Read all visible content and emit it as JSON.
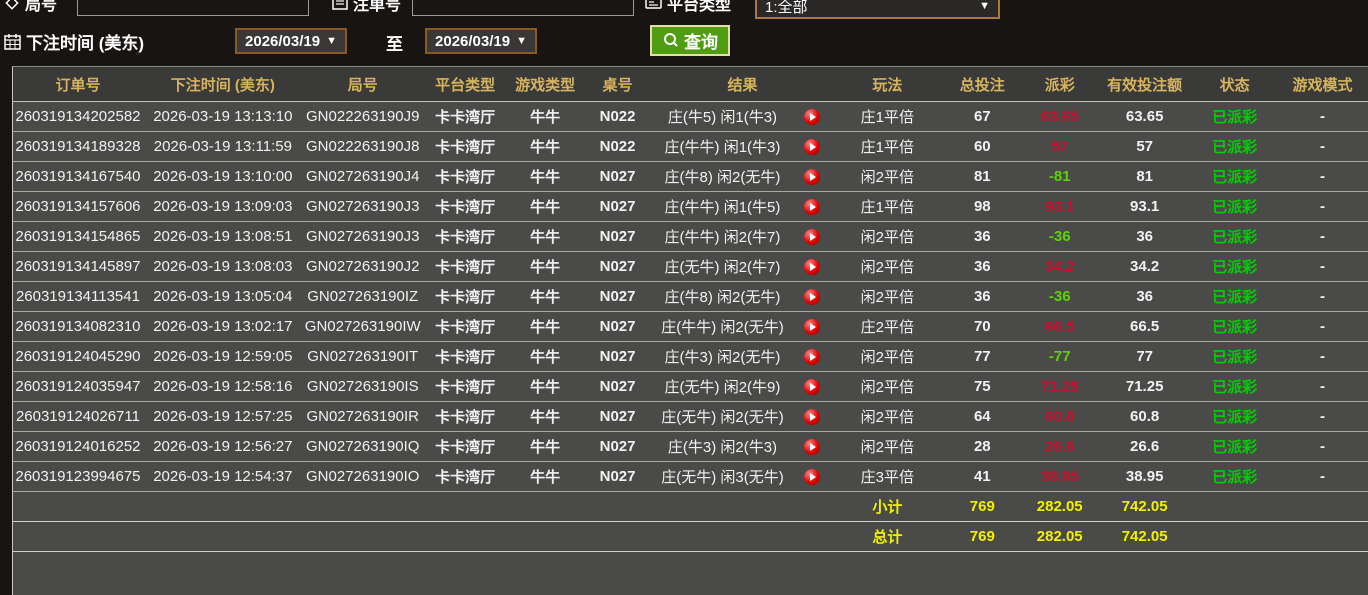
{
  "colors": {
    "header_text": "#d6b35f",
    "payout_win": "#cf0e2e",
    "payout_loss": "#5bd400",
    "status_paid": "#00cf00",
    "totals": "#f2f200",
    "query_button": "#4f9d12",
    "picker_border": "#8a5a26",
    "dropdown_border": "#a8793a",
    "play_icon": "#e00000"
  },
  "filters": {
    "round_label": "局号",
    "bet_id_label": "注单号",
    "round_value": "",
    "bet_id_value": "",
    "platform_label": "平台类型",
    "platform_value": "1:全部",
    "time_label": "下注时间 (美东)",
    "date_from": "2026/03/19",
    "to_label": "至",
    "date_to": "2026/03/19",
    "search_label": "查询",
    "caret": "▼"
  },
  "table": {
    "columns": [
      "订单号",
      "下注时间 (美东)",
      "局号",
      "平台类型",
      "游戏类型",
      "桌号",
      "结果",
      "玩法",
      "总投注",
      "派彩",
      "有效投注额",
      "状态",
      "游戏模式"
    ],
    "rows": [
      {
        "order": "260319134202582",
        "time": "2026-03-19 13:13:10",
        "round": "GN022263190J9",
        "platform": "卡卡湾厅",
        "game": "牛牛",
        "table": "N022",
        "result": "庄(牛5) 闲1(牛3)",
        "play": "庄1平倍",
        "total": "67",
        "payout": "63.65",
        "valid": "63.65",
        "status": "已派彩",
        "mode": "-"
      },
      {
        "order": "260319134189328",
        "time": "2026-03-19 13:11:59",
        "round": "GN022263190J8",
        "platform": "卡卡湾厅",
        "game": "牛牛",
        "table": "N022",
        "result": "庄(牛牛) 闲1(牛3)",
        "play": "庄1平倍",
        "total": "60",
        "payout": "57",
        "valid": "57",
        "status": "已派彩",
        "mode": "-"
      },
      {
        "order": "260319134167540",
        "time": "2026-03-19 13:10:00",
        "round": "GN027263190J4",
        "platform": "卡卡湾厅",
        "game": "牛牛",
        "table": "N027",
        "result": "庄(牛8) 闲2(无牛)",
        "play": "闲2平倍",
        "total": "81",
        "payout": "-81",
        "valid": "81",
        "status": "已派彩",
        "mode": "-"
      },
      {
        "order": "260319134157606",
        "time": "2026-03-19 13:09:03",
        "round": "GN027263190J3",
        "platform": "卡卡湾厅",
        "game": "牛牛",
        "table": "N027",
        "result": "庄(牛牛) 闲1(牛5)",
        "play": "庄1平倍",
        "total": "98",
        "payout": "93.1",
        "valid": "93.1",
        "status": "已派彩",
        "mode": "-"
      },
      {
        "order": "260319134154865",
        "time": "2026-03-19 13:08:51",
        "round": "GN027263190J3",
        "platform": "卡卡湾厅",
        "game": "牛牛",
        "table": "N027",
        "result": "庄(牛牛) 闲2(牛7)",
        "play": "闲2平倍",
        "total": "36",
        "payout": "-36",
        "valid": "36",
        "status": "已派彩",
        "mode": "-"
      },
      {
        "order": "260319134145897",
        "time": "2026-03-19 13:08:03",
        "round": "GN027263190J2",
        "platform": "卡卡湾厅",
        "game": "牛牛",
        "table": "N027",
        "result": "庄(无牛) 闲2(牛7)",
        "play": "闲2平倍",
        "total": "36",
        "payout": "34.2",
        "valid": "34.2",
        "status": "已派彩",
        "mode": "-"
      },
      {
        "order": "260319134113541",
        "time": "2026-03-19 13:05:04",
        "round": "GN027263190IZ",
        "platform": "卡卡湾厅",
        "game": "牛牛",
        "table": "N027",
        "result": "庄(牛8) 闲2(无牛)",
        "play": "闲2平倍",
        "total": "36",
        "payout": "-36",
        "valid": "36",
        "status": "已派彩",
        "mode": "-"
      },
      {
        "order": "260319134082310",
        "time": "2026-03-19 13:02:17",
        "round": "GN027263190IW",
        "platform": "卡卡湾厅",
        "game": "牛牛",
        "table": "N027",
        "result": "庄(牛牛) 闲2(无牛)",
        "play": "庄2平倍",
        "total": "70",
        "payout": "66.5",
        "valid": "66.5",
        "status": "已派彩",
        "mode": "-"
      },
      {
        "order": "260319124045290",
        "time": "2026-03-19 12:59:05",
        "round": "GN027263190IT",
        "platform": "卡卡湾厅",
        "game": "牛牛",
        "table": "N027",
        "result": "庄(牛3) 闲2(无牛)",
        "play": "闲2平倍",
        "total": "77",
        "payout": "-77",
        "valid": "77",
        "status": "已派彩",
        "mode": "-"
      },
      {
        "order": "260319124035947",
        "time": "2026-03-19 12:58:16",
        "round": "GN027263190IS",
        "platform": "卡卡湾厅",
        "game": "牛牛",
        "table": "N027",
        "result": "庄(无牛) 闲2(牛9)",
        "play": "闲2平倍",
        "total": "75",
        "payout": "71.25",
        "valid": "71.25",
        "status": "已派彩",
        "mode": "-"
      },
      {
        "order": "260319124026711",
        "time": "2026-03-19 12:57:25",
        "round": "GN027263190IR",
        "platform": "卡卡湾厅",
        "game": "牛牛",
        "table": "N027",
        "result": "庄(无牛) 闲2(无牛)",
        "play": "闲2平倍",
        "total": "64",
        "payout": "60.8",
        "valid": "60.8",
        "status": "已派彩",
        "mode": "-"
      },
      {
        "order": "260319124016252",
        "time": "2026-03-19 12:56:27",
        "round": "GN027263190IQ",
        "platform": "卡卡湾厅",
        "game": "牛牛",
        "table": "N027",
        "result": "庄(牛3) 闲2(牛3)",
        "play": "闲2平倍",
        "total": "28",
        "payout": "26.6",
        "valid": "26.6",
        "status": "已派彩",
        "mode": "-"
      },
      {
        "order": "260319123994675",
        "time": "2026-03-19 12:54:37",
        "round": "GN027263190IO",
        "platform": "卡卡湾厅",
        "game": "牛牛",
        "table": "N027",
        "result": "庄(无牛) 闲3(无牛)",
        "play": "庄3平倍",
        "total": "41",
        "payout": "38.95",
        "valid": "38.95",
        "status": "已派彩",
        "mode": "-"
      }
    ],
    "subtotal": {
      "label": "小计",
      "total": "769",
      "payout": "282.05",
      "valid": "742.05"
    },
    "total": {
      "label": "总计",
      "total": "769",
      "payout": "282.05",
      "valid": "742.05"
    }
  }
}
